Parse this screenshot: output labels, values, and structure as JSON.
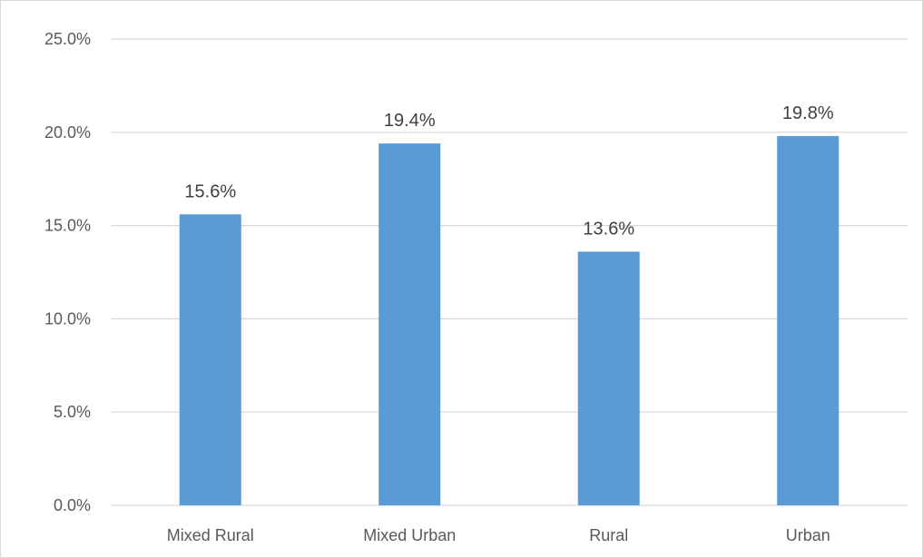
{
  "chart_data": {
    "type": "bar",
    "title": "",
    "xlabel": "",
    "ylabel": "",
    "categories": [
      "Mixed Rural",
      "Mixed Urban",
      "Rural",
      "Urban"
    ],
    "values": [
      15.6,
      19.4,
      13.6,
      19.8
    ],
    "value_labels": [
      "15.6%",
      "19.4%",
      "13.6%",
      "19.8%"
    ],
    "ylim": [
      0,
      25
    ],
    "yticks": [
      0,
      5,
      10,
      15,
      20,
      25
    ],
    "ytick_labels": [
      "0.0%",
      "5.0%",
      "10.0%",
      "15.0%",
      "20.0%",
      "25.0%"
    ],
    "grid": true,
    "legend": "none",
    "colors": {
      "bar": "#5b9bd5",
      "grid": "#d9d9d9"
    }
  }
}
